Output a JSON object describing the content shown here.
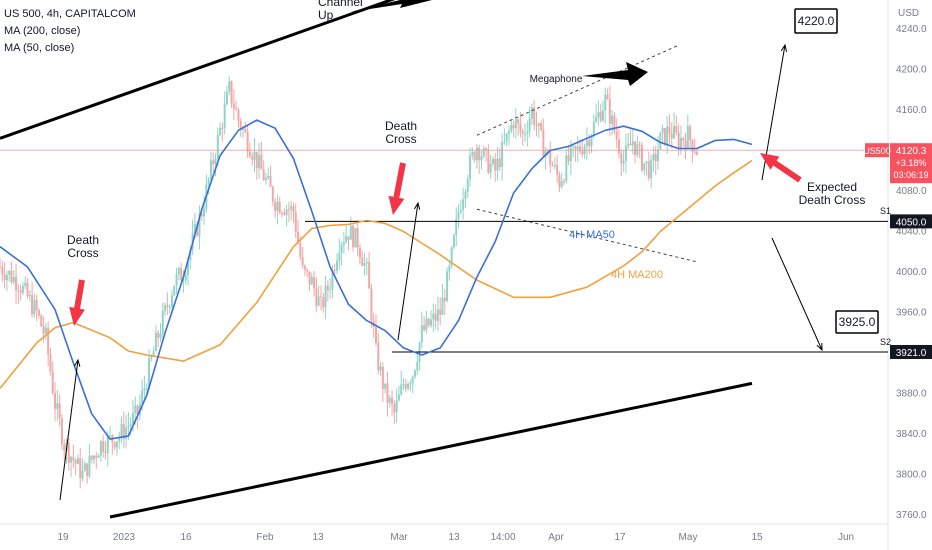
{
  "legend": {
    "title": "US 500, 4h, CAPITALCOM",
    "ma1": "MA (200, close)",
    "ma2": "MA (50, close)"
  },
  "colors": {
    "ma50": "#3a6fd8",
    "ma200": "#f2a03d",
    "candle_up": "#8fd4c8",
    "candle_down": "#f4a6a6",
    "price_line": "#f28b8b",
    "badge_bg": "#f7525f",
    "annotation_arrow": "#f23645"
  },
  "chart_data": {
    "type": "line",
    "title": "",
    "ylabel": "USD",
    "ylim": [
      3750,
      4255
    ],
    "y_ticks": [
      3760,
      3800,
      3840,
      3880,
      3920,
      3960,
      4000,
      4040,
      4080,
      4120,
      4160,
      4200,
      4240
    ],
    "x_ticks": [
      "19",
      "2023",
      "16",
      "Feb",
      "13",
      "Mar",
      "13",
      "14:00",
      "Apr",
      "17",
      "May",
      "15",
      "Jun"
    ],
    "series": [
      {
        "name": "4H MA50",
        "x": [
          0,
          6,
          12,
          16,
          20,
          24,
          28,
          32,
          36,
          40,
          44,
          48,
          52,
          56,
          60,
          64,
          68,
          72,
          76,
          80,
          84,
          88,
          92,
          96,
          100,
          104,
          108,
          112,
          116,
          120,
          124,
          128,
          132,
          136,
          140,
          144,
          148,
          152,
          156,
          160,
          164
        ],
        "values": [
          4025,
          4005,
          3963,
          3910,
          3860,
          3835,
          3838,
          3878,
          3940,
          3995,
          4062,
          4115,
          4140,
          4150,
          4142,
          4112,
          4060,
          4005,
          3968,
          3952,
          3942,
          3925,
          3918,
          3925,
          3952,
          3995,
          4030,
          4078,
          4102,
          4120,
          4124,
          4132,
          4140,
          4144,
          4139,
          4128,
          4122,
          4122,
          4130,
          4131,
          4126
        ]
      },
      {
        "name": "4H MA200",
        "x": [
          0,
          8,
          12,
          16,
          24,
          28,
          32,
          40,
          44,
          48,
          56,
          64,
          68,
          72,
          76,
          80,
          84,
          88,
          96,
          104,
          112,
          120,
          128,
          136,
          140,
          144,
          152,
          156,
          160,
          164
        ],
        "values": [
          3885,
          3930,
          3945,
          3950,
          3935,
          3922,
          3918,
          3912,
          3920,
          3928,
          3970,
          4025,
          4043,
          4046,
          4047,
          4051,
          4048,
          4040,
          4017,
          3992,
          3975,
          3975,
          3985,
          4006,
          4020,
          4040,
          4070,
          4085,
          4098,
          4110
        ]
      }
    ],
    "current_price": {
      "symbol": "US500",
      "value": "4120.3",
      "change": "+3.18%",
      "countdown": "03:06:19"
    },
    "price_labels": {
      "s1": "4050.0",
      "s2": "3921.0"
    },
    "levels": {
      "s1": 4050,
      "s2": 3921,
      "current": 4120.3
    },
    "channel": {
      "upper": [
        [
          0,
          4132
        ],
        [
          164,
          4395
        ]
      ],
      "lower": [
        [
          24,
          3758
        ],
        [
          164,
          3890
        ]
      ]
    },
    "megaphone": {
      "upper": [
        [
          104,
          4135
        ],
        [
          148,
          4224
        ]
      ],
      "lower": [
        [
          104,
          4062
        ],
        [
          152,
          4010
        ]
      ]
    },
    "annotations": {
      "channel_up": [
        "Channel",
        "Up"
      ],
      "death_cross_1": [
        "Death",
        "Cross"
      ],
      "death_cross_2": [
        "Death",
        "Cross"
      ],
      "expected_death_cross": [
        "Expected",
        "Death Cross"
      ],
      "megaphone": "Megaphone",
      "target_high": "4220.0",
      "target_low": "3925.0",
      "ma50_label": "4H MA50",
      "ma200_label": "4H MA200",
      "s1": "S1",
      "s2": "S2"
    }
  }
}
